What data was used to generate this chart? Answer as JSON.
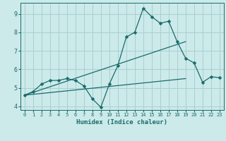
{
  "xlabel": "Humidex (Indice chaleur)",
  "background_color": "#cceaea",
  "grid_color": "#aacfcf",
  "line_color": "#1a6b6b",
  "xlim": [
    -0.5,
    23.5
  ],
  "ylim": [
    3.8,
    9.6
  ],
  "yticks": [
    4,
    5,
    6,
    7,
    8,
    9
  ],
  "xticks": [
    0,
    1,
    2,
    3,
    4,
    5,
    6,
    7,
    8,
    9,
    10,
    11,
    12,
    13,
    14,
    15,
    16,
    17,
    18,
    19,
    20,
    21,
    22,
    23
  ],
  "line1_x": [
    0,
    1,
    2,
    3,
    4,
    5,
    6,
    7,
    8,
    9,
    10,
    11,
    12,
    13,
    14,
    15,
    16,
    17,
    18,
    19,
    20,
    21,
    22,
    23
  ],
  "line1_y": [
    4.6,
    4.8,
    5.2,
    5.4,
    5.4,
    5.5,
    5.4,
    5.1,
    4.4,
    3.95,
    5.2,
    6.2,
    7.75,
    8.0,
    9.3,
    8.85,
    8.5,
    8.6,
    7.5,
    6.6,
    6.35,
    5.3,
    5.6,
    5.55
  ],
  "line2_x": [
    0,
    19
  ],
  "line2_y": [
    4.6,
    7.5
  ],
  "line3_x": [
    0,
    19
  ],
  "line3_y": [
    4.6,
    5.5
  ]
}
